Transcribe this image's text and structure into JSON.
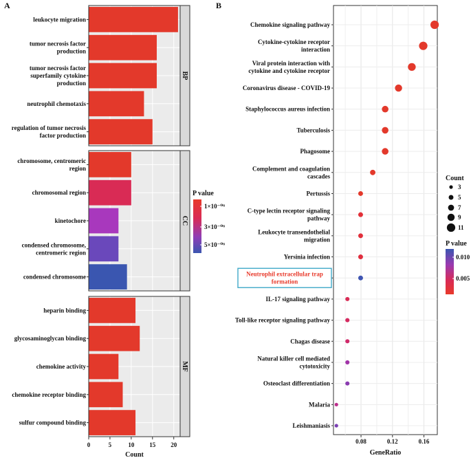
{
  "chart_data": [
    {
      "panel_label": "A",
      "type": "bar",
      "orientation": "horizontal",
      "xlabel": "Count",
      "xlim": [
        0,
        21.5
      ],
      "xticks": [
        "0",
        "5",
        "10",
        "15",
        "20"
      ],
      "legend": {
        "title": "P value",
        "labels": [
          "1×10⁻⁰⁶",
          "3×10⁻⁰⁶",
          "5×10⁻⁰⁶"
        ],
        "low_color": "#e8392a",
        "high_color": "#3a56b0"
      },
      "groups": [
        {
          "name": "BP",
          "terms": [
            {
              "lines": [
                "leukocyte migration"
              ],
              "count": 21,
              "pvalue": 5e-08,
              "color": "#e3392b"
            },
            {
              "lines": [
                "tumor necrosis factor",
                "production"
              ],
              "count": 16,
              "pvalue": 1e-07,
              "color": "#e3392b"
            },
            {
              "lines": [
                "tumor necrosis factor",
                "superfamily cytokine",
                "production"
              ],
              "count": 16,
              "pvalue": 1e-07,
              "color": "#e3392b"
            },
            {
              "lines": [
                "neutrophil chemotaxis"
              ],
              "count": 13,
              "pvalue": 2e-07,
              "color": "#e3392b"
            },
            {
              "lines": [
                "regulation of tumor necrosis",
                "factor production"
              ],
              "count": 15,
              "pvalue": 2e-07,
              "color": "#e3392b"
            }
          ]
        },
        {
          "name": "CC",
          "terms": [
            {
              "lines": [
                "chromosome, centromeric",
                "region"
              ],
              "count": 10,
              "pvalue": 4e-07,
              "color": "#e3392b"
            },
            {
              "lines": [
                "chromosomal region"
              ],
              "count": 10,
              "pvalue": 1.6e-06,
              "color": "#d92b55"
            },
            {
              "lines": [
                "kinetochore"
              ],
              "count": 7,
              "pvalue": 4e-06,
              "color": "#a838bd"
            },
            {
              "lines": [
                "condensed chromosome,",
                "centromeric region"
              ],
              "count": 7,
              "pvalue": 5e-06,
              "color": "#6a48bb"
            },
            {
              "lines": [
                "condensed chromosome"
              ],
              "count": 9,
              "pvalue": 5.8e-06,
              "color": "#3a56b0"
            }
          ]
        },
        {
          "name": "MF",
          "terms": [
            {
              "lines": [
                "heparin binding"
              ],
              "count": 11,
              "pvalue": 2e-07,
              "color": "#e3392b"
            },
            {
              "lines": [
                "glycosaminoglycan binding"
              ],
              "count": 12,
              "pvalue": 2e-07,
              "color": "#e3392b"
            },
            {
              "lines": [
                "chemokine activity"
              ],
              "count": 7,
              "pvalue": 2e-07,
              "color": "#e3392b"
            },
            {
              "lines": [
                "chemokine receptor binding"
              ],
              "count": 8,
              "pvalue": 2e-07,
              "color": "#e3392b"
            },
            {
              "lines": [
                "sulfur compound binding"
              ],
              "count": 11,
              "pvalue": 2e-07,
              "color": "#e3392b"
            }
          ]
        }
      ]
    },
    {
      "panel_label": "B",
      "type": "scatter",
      "xlabel": "GeneRatio",
      "xlim": [
        0.045,
        0.177
      ],
      "xticks": [
        0.08,
        0.12,
        0.16
      ],
      "size_legend": {
        "title": "Count",
        "values": [
          3,
          5,
          7,
          9,
          11
        ]
      },
      "color_legend": {
        "title": "P value",
        "labels": [
          "0.010",
          "0.005"
        ]
      },
      "highlighted_term": "Neutrophil extracellular trap formation",
      "highlight_color": "#e8392a",
      "points": [
        {
          "lines": [
            "Chemokine signaling pathway"
          ],
          "ratio": 0.1736,
          "count": 11,
          "pvalue": 0.0002,
          "color": "#e3392b"
        },
        {
          "lines": [
            "Cytokine-cytokine receptor",
            "interaction"
          ],
          "ratio": 0.1591,
          "count": 11,
          "pvalue": 0.0003,
          "color": "#e3392b"
        },
        {
          "lines": [
            "Viral protein interaction with",
            "cytokine and cytokine receptor"
          ],
          "ratio": 0.1446,
          "count": 10,
          "pvalue": 0.0002,
          "color": "#e3392b"
        },
        {
          "lines": [
            "Coronavirus disease - COVID-19"
          ],
          "ratio": 0.1277,
          "count": 9,
          "pvalue": 0.0003,
          "color": "#e3392b"
        },
        {
          "lines": [
            "Staphylococcus aureus infection"
          ],
          "ratio": 0.1107,
          "count": 8,
          "pvalue": 0.0002,
          "color": "#e3392b"
        },
        {
          "lines": [
            "Tuberculosis"
          ],
          "ratio": 0.1107,
          "count": 8,
          "pvalue": 0.0003,
          "color": "#e3392b"
        },
        {
          "lines": [
            "Phagosome"
          ],
          "ratio": 0.1107,
          "count": 8,
          "pvalue": 0.0003,
          "color": "#e3392b"
        },
        {
          "lines": [
            "Complement and coagulation",
            "cascades"
          ],
          "ratio": 0.0949,
          "count": 6,
          "pvalue": 0.0005,
          "color": "#e3392b"
        },
        {
          "lines": [
            "Pertussis"
          ],
          "ratio": 0.0795,
          "count": 5,
          "pvalue": 0.0006,
          "color": "#e3392b"
        },
        {
          "lines": [
            "C-type lectin receptor signaling",
            "pathway"
          ],
          "ratio": 0.0795,
          "count": 5,
          "pvalue": 0.0012,
          "color": "#e23038"
        },
        {
          "lines": [
            "Leukocyte transendothelial",
            "migration"
          ],
          "ratio": 0.0795,
          "count": 5,
          "pvalue": 0.0015,
          "color": "#e12f3b"
        },
        {
          "lines": [
            "Yersinia infection"
          ],
          "ratio": 0.0795,
          "count": 5,
          "pvalue": 0.0018,
          "color": "#e02e3f"
        },
        {
          "lines": [
            "Neutrophil extracellular trap",
            "formation"
          ],
          "ratio": 0.0795,
          "count": 5,
          "pvalue": 0.0125,
          "color": "#3f55b2"
        },
        {
          "lines": [
            "IL-17 signaling pathway"
          ],
          "ratio": 0.0627,
          "count": 4,
          "pvalue": 0.0035,
          "color": "#d92b55"
        },
        {
          "lines": [
            "Toll-like receptor signaling pathway"
          ],
          "ratio": 0.0627,
          "count": 4,
          "pvalue": 0.004,
          "color": "#d52a60"
        },
        {
          "lines": [
            "Chagas disease"
          ],
          "ratio": 0.0627,
          "count": 4,
          "pvalue": 0.0045,
          "color": "#d02a6a"
        },
        {
          "lines": [
            "Natural killer cell mediated",
            "cytotoxicity"
          ],
          "ratio": 0.0627,
          "count": 4,
          "pvalue": 0.0075,
          "color": "#a133a8"
        },
        {
          "lines": [
            "Osteoclast differentiation"
          ],
          "ratio": 0.0627,
          "count": 4,
          "pvalue": 0.0085,
          "color": "#8a3bb0"
        },
        {
          "lines": [
            "Malaria"
          ],
          "ratio": 0.0487,
          "count": 3,
          "pvalue": 0.006,
          "color": "#bb2d8c"
        },
        {
          "lines": [
            "Leishmaniasis"
          ],
          "ratio": 0.0487,
          "count": 3,
          "pvalue": 0.0095,
          "color": "#7a3fb4"
        }
      ]
    }
  ]
}
